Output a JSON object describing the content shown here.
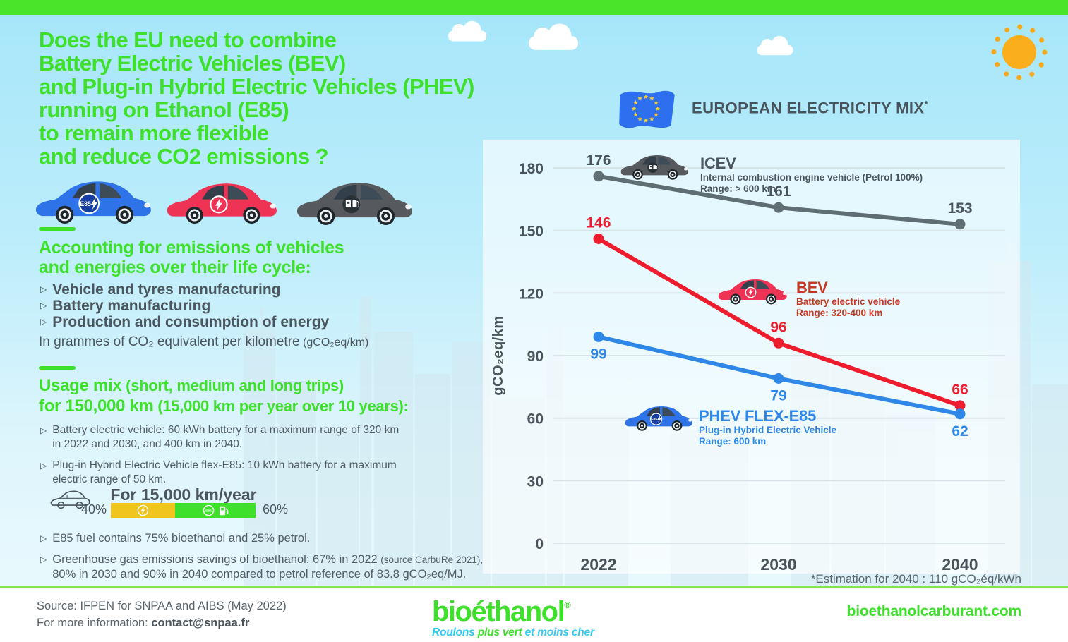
{
  "title_lines": [
    "Does the EU need to combine",
    "Battery Electric Vehicles (BEV)",
    "and Plug-in Hybrid Electric Vehicles (PHEV)",
    "running on Ethanol (E85)",
    "to remain more flexible",
    "and reduce CO2 emissions ?"
  ],
  "lifecycle": {
    "heading_line1": "Accounting for emissions of vehicles",
    "heading_line2": "and energies over their life cycle:",
    "bullets": [
      "Vehicle and tyres manufacturing",
      "Battery manufacturing",
      "Production and consumption of energy"
    ],
    "note_text": "In grammes of CO₂ equivalent per kilometre",
    "note_unit": " (gCO₂eq/km)"
  },
  "usage": {
    "heading1_main": "Usage mix",
    "heading1_paren": " (short, medium and long trips)",
    "heading2_main": "for 150,000 km",
    "heading2_paren": " (15,000 km per year over 10 years):",
    "bullet1": "Battery electric vehicle: 60 kWh battery for a maximum range of 320 km in 2022 and 2030, and 400 km in 2040.",
    "bullet2": "Plug-in Hybrid Electric Vehicle flex-E85: 10 kWh battery for a maximum electric range of 50 km."
  },
  "annual_mix": {
    "title": "For 15,000 km/year",
    "electric_share": "40%",
    "e85_share": "60%",
    "electric_color": "#EFC51E",
    "e85_color": "#3EE02B",
    "badge_label": "E85"
  },
  "fuel_notes": {
    "note1": "E85 fuel contains 75% bioethanol and 25% petrol.",
    "note2_main": "Greenhouse gas emissions savings of bioethanol: 67% in 2022 ",
    "note2_small": "(source CarbuRe 2021),",
    "note2_line2": "80% in 2030 and 90% in 2040 compared to petrol reference of 83.8 gCO₂eq/MJ."
  },
  "chart_header": {
    "title": "EUROPEAN ELECTRICITY MIX",
    "asterisk": "*"
  },
  "chart_data": {
    "type": "line",
    "title": "EUROPEAN ELECTRICITY MIX*",
    "x": [
      "2022",
      "2030",
      "2040"
    ],
    "ylabel": "gCO₂eq/km",
    "ylim": [
      0,
      180
    ],
    "yticks": [
      180,
      150,
      120,
      90,
      60,
      30,
      0
    ],
    "grid": true,
    "legend_position": "inline-next-to-lines",
    "footnote": "*Estimation for 2040 : 110 gCO₂éq/kWh",
    "series": [
      {
        "name": "ICEV",
        "subtitle": "Internal combustion engine vehicle (Petrol 100%)",
        "range": "Range: > 600 km",
        "values": [
          176,
          161,
          153
        ],
        "color": "#5E6E72",
        "name_color": "#4A555D",
        "value_color": "#4A555D",
        "value_label_position": "above"
      },
      {
        "name": "BEV",
        "subtitle": "Battery electric vehicle",
        "range": "Range: 320-400 km",
        "values": [
          146,
          96,
          66
        ],
        "color": "#EE1D2E",
        "name_color": "#C23A22",
        "value_color": "#EE1D2E",
        "value_label_position": "above"
      },
      {
        "name": "PHEV FLEX-E85",
        "subtitle": "Plug-in Hybrid Electric Vehicle",
        "range": "Range: 600 km",
        "values": [
          99,
          79,
          62
        ],
        "color": "#2F88E8",
        "name_color": "#2F88E8",
        "value_color": "#2F88E8",
        "value_label_position": "below"
      }
    ]
  },
  "footer": {
    "source": "Source: IFPEN for SNPAA and AIBS (May 2022)",
    "info_label": "For more information: ",
    "info_email": "contact@snpaa.fr",
    "logo_text": "bioéthanol",
    "logo_reg": "®",
    "tagline_part1": "Roulons ",
    "tagline_part2": "plus vert ",
    "tagline_part3": "et moins cher",
    "website": "bioethanolcarburant.com"
  },
  "icons": {
    "sun": "sun-icon",
    "cloud": "cloud-icon",
    "eu_flag": "eu-flag-icon",
    "phev_car": "phev-e85-car-icon",
    "bev_car": "bev-car-icon",
    "icev_car": "icev-car-icon",
    "car_outline": "car-outline-icon",
    "lightning": "lightning-bolt-icon",
    "fuel_pump": "fuel-pump-icon"
  }
}
